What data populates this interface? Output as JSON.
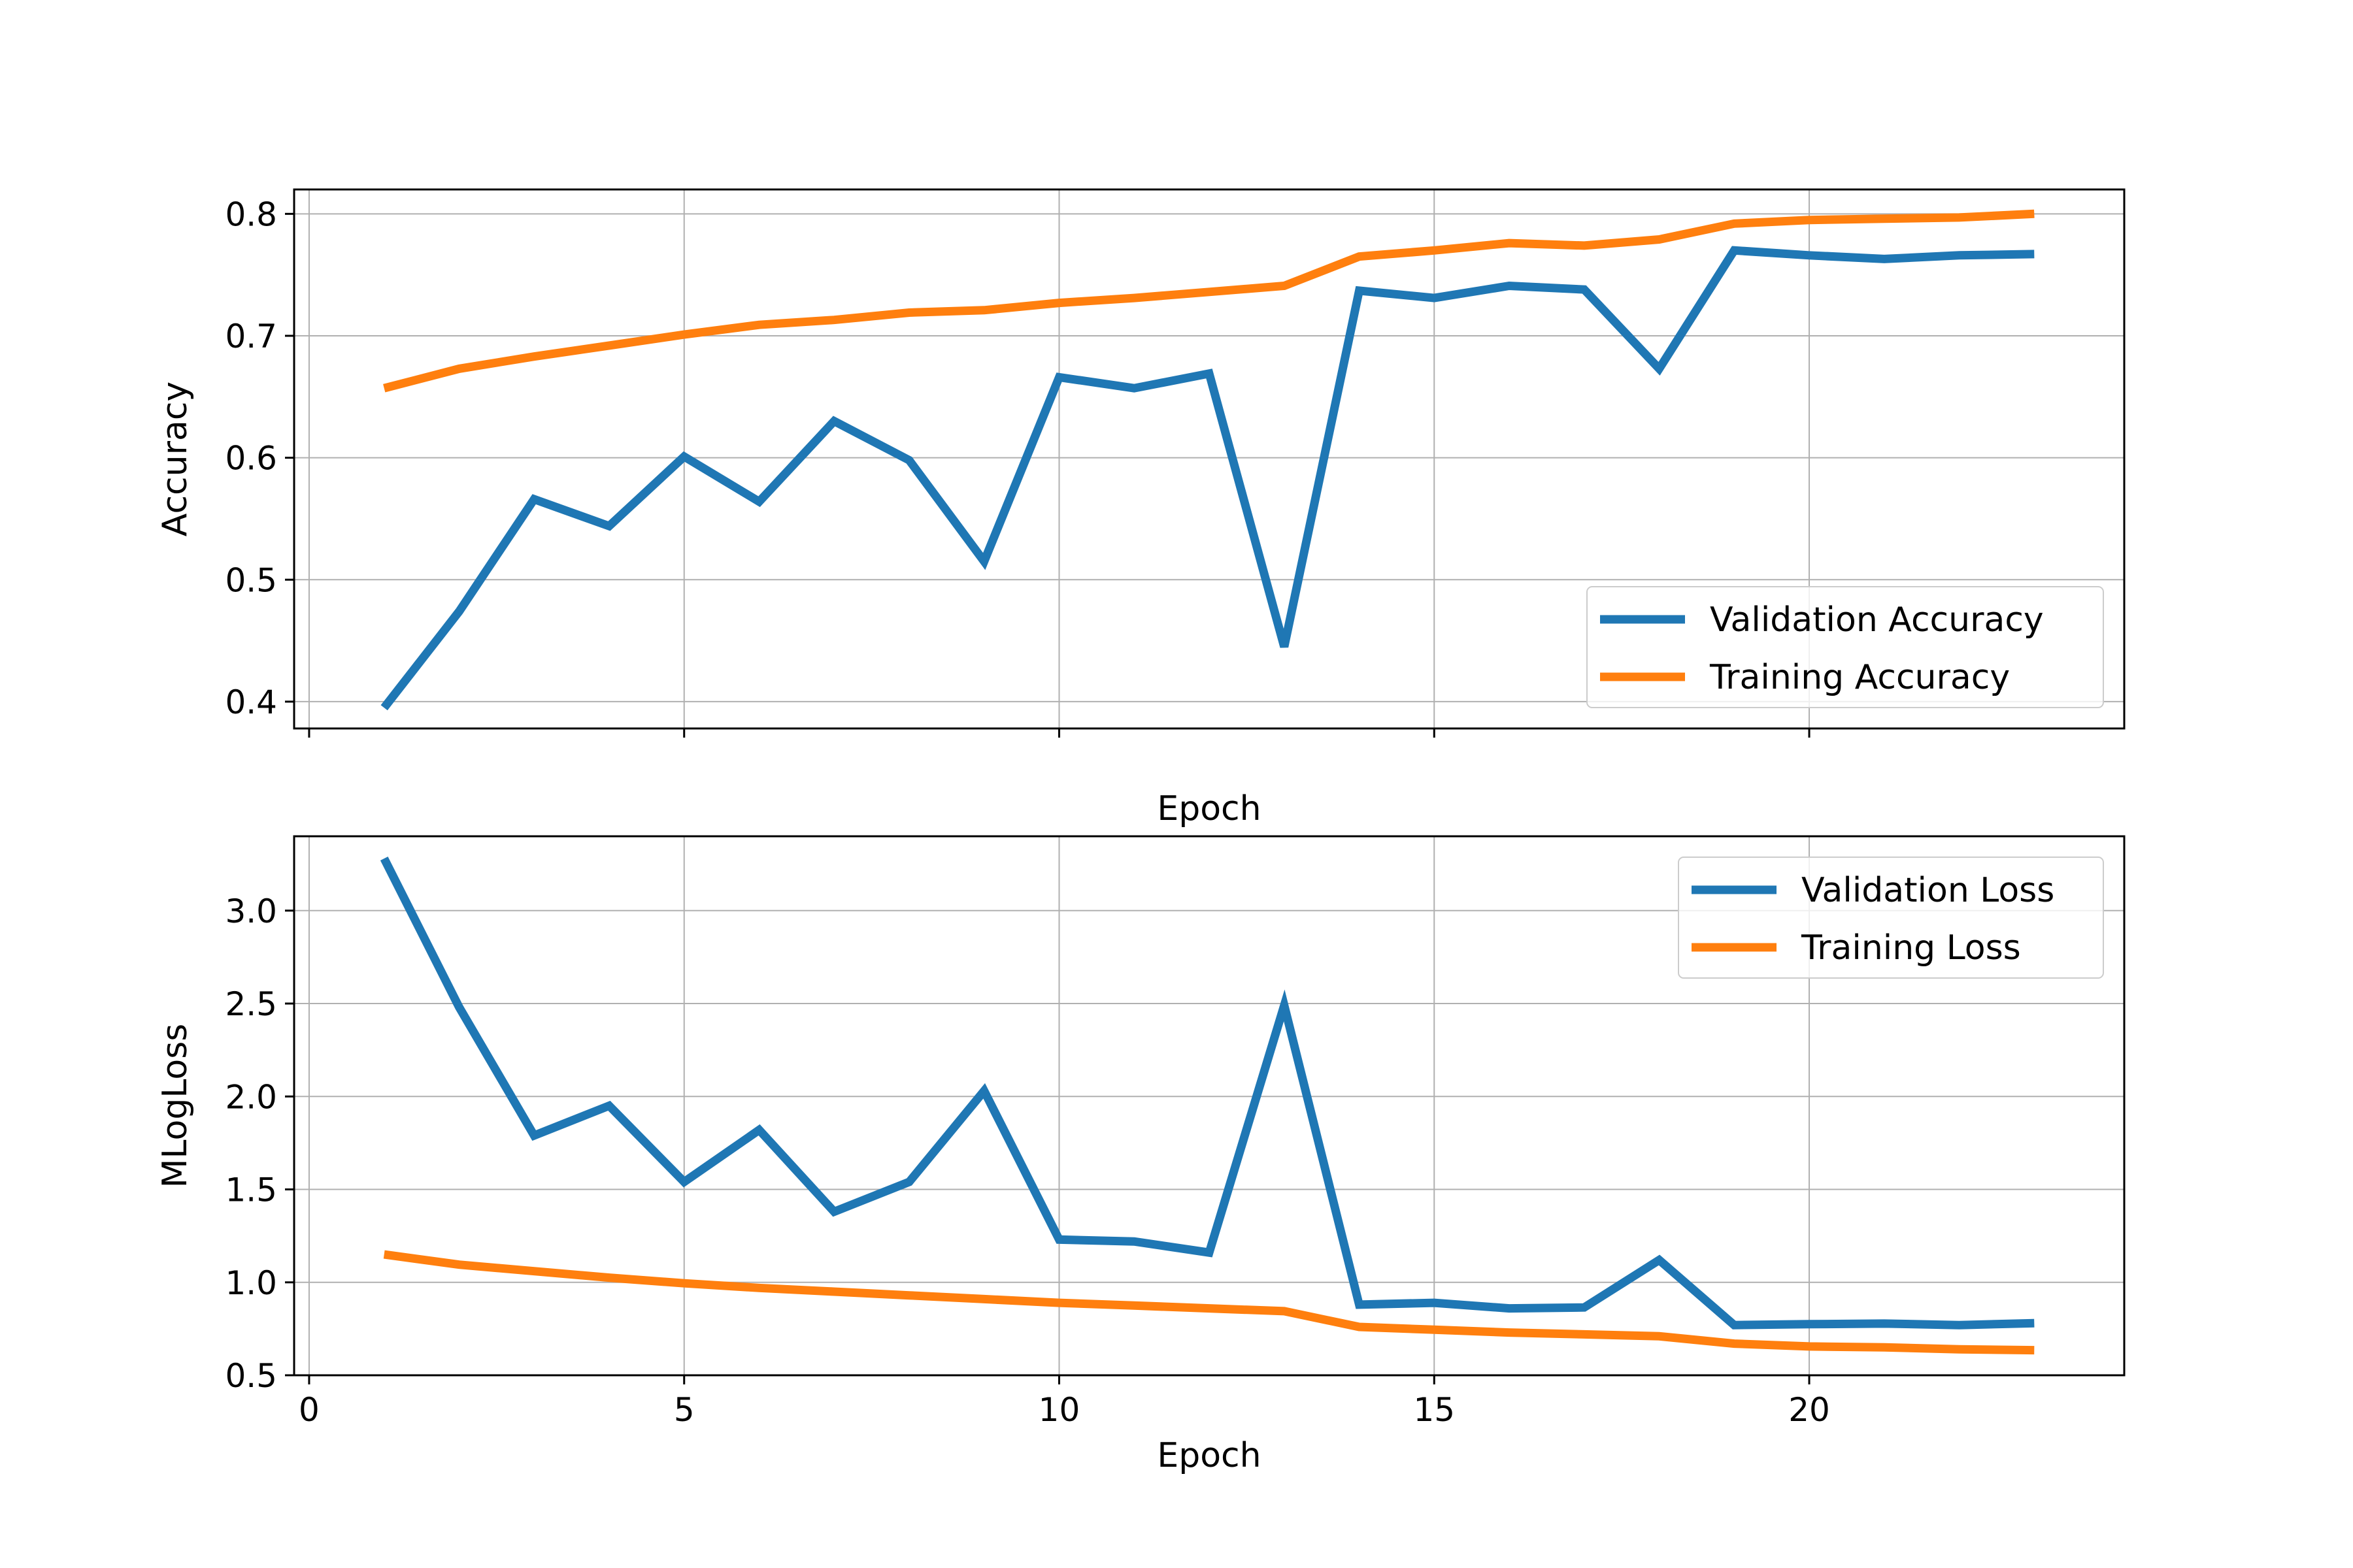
{
  "chart_data": [
    {
      "type": "line",
      "xlabel": "Epoch",
      "ylabel": "Accuracy",
      "xlim": [
        -0.2,
        24.2
      ],
      "ylim": [
        0.378,
        0.82
      ],
      "xticks": [
        0,
        5,
        10,
        15,
        20
      ],
      "xtick_labels_shown": false,
      "yticks": [
        0.4,
        0.5,
        0.6,
        0.7,
        0.8
      ],
      "ytick_labels": [
        "0.4",
        "0.5",
        "0.6",
        "0.7",
        "0.8"
      ],
      "grid": true,
      "legend_position": "lower-right",
      "x": [
        1,
        2,
        3,
        4,
        5,
        6,
        7,
        8,
        9,
        10,
        11,
        12,
        13,
        14,
        15,
        16,
        17,
        18,
        19,
        20,
        21,
        22,
        23
      ],
      "series": [
        {
          "name": "Validation Accuracy",
          "color": "#1f77b4",
          "values": [
            0.395,
            0.474,
            0.566,
            0.544,
            0.601,
            0.564,
            0.63,
            0.598,
            0.515,
            0.666,
            0.657,
            0.669,
            0.445,
            0.737,
            0.731,
            0.741,
            0.738,
            0.673,
            0.77,
            0.766,
            0.763,
            0.766,
            0.767
          ]
        },
        {
          "name": "Training Accuracy",
          "color": "#ff7f0e",
          "values": [
            0.657,
            0.673,
            0.683,
            0.692,
            0.701,
            0.709,
            0.713,
            0.719,
            0.721,
            0.727,
            0.731,
            0.736,
            0.741,
            0.765,
            0.77,
            0.776,
            0.774,
            0.779,
            0.792,
            0.795,
            0.796,
            0.797,
            0.8
          ]
        }
      ]
    },
    {
      "type": "line",
      "xlabel": "Epoch",
      "ylabel": "MLogLoss",
      "xlim": [
        -0.2,
        24.2
      ],
      "ylim": [
        0.5,
        3.4
      ],
      "xticks": [
        0,
        5,
        10,
        15,
        20
      ],
      "xtick_labels": [
        "0",
        "5",
        "10",
        "15",
        "20"
      ],
      "yticks": [
        0.5,
        1.0,
        1.5,
        2.0,
        2.5,
        3.0
      ],
      "ytick_labels": [
        "0.5",
        "1.0",
        "1.5",
        "2.0",
        "2.5",
        "3.0"
      ],
      "grid": true,
      "legend_position": "upper-right",
      "x": [
        1,
        2,
        3,
        4,
        5,
        6,
        7,
        8,
        9,
        10,
        11,
        12,
        13,
        14,
        15,
        16,
        17,
        18,
        19,
        20,
        21,
        22,
        23
      ],
      "series": [
        {
          "name": "Validation Loss",
          "color": "#1f77b4",
          "values": [
            3.28,
            2.48,
            1.79,
            1.95,
            1.54,
            1.82,
            1.38,
            1.54,
            2.03,
            1.23,
            1.22,
            1.16,
            2.49,
            0.88,
            0.89,
            0.86,
            0.865,
            1.12,
            0.77,
            0.775,
            0.778,
            0.77,
            0.78
          ]
        },
        {
          "name": "Training Loss",
          "color": "#ff7f0e",
          "values": [
            1.15,
            1.095,
            1.06,
            1.025,
            0.995,
            0.97,
            0.95,
            0.93,
            0.91,
            0.89,
            0.875,
            0.86,
            0.845,
            0.76,
            0.745,
            0.73,
            0.72,
            0.71,
            0.67,
            0.655,
            0.65,
            0.64,
            0.635
          ]
        }
      ]
    }
  ]
}
